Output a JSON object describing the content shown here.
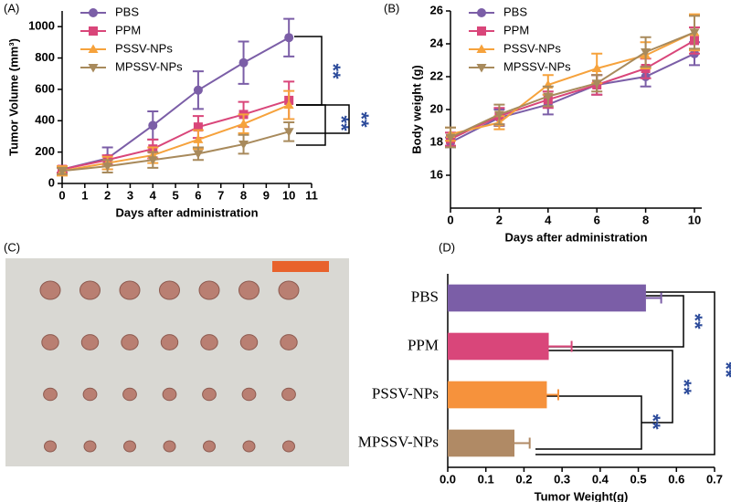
{
  "chart_data": [
    {
      "type": "line",
      "panel": "(A)",
      "xlabel": "Days after administration",
      "ylabel": "Tumor Volume (mm³)",
      "x": [
        0,
        2,
        4,
        6,
        8,
        10
      ],
      "xlim": [
        0,
        11
      ],
      "xticks": [
        0,
        1,
        2,
        3,
        4,
        5,
        6,
        7,
        8,
        9,
        10,
        11
      ],
      "ylim": [
        0,
        1100
      ],
      "yticks": [
        0,
        200,
        400,
        600,
        800,
        1000
      ],
      "legend": "top-left",
      "series": [
        {
          "name": "PBS",
          "color": "#7b5ea7",
          "marker": "circle",
          "values": [
            90,
            160,
            370,
            595,
            770,
            930
          ],
          "errors": [
            20,
            70,
            90,
            120,
            135,
            120
          ]
        },
        {
          "name": "PPM",
          "color": "#d9467a",
          "marker": "square",
          "values": [
            90,
            150,
            220,
            360,
            440,
            530
          ],
          "errors": [
            20,
            30,
            60,
            70,
            80,
            120
          ]
        },
        {
          "name": "PSSV-NPs",
          "color": "#f6a23c",
          "marker": "triangle-up",
          "values": [
            80,
            130,
            180,
            280,
            380,
            500
          ],
          "errors": [
            30,
            40,
            50,
            60,
            60,
            90
          ]
        },
        {
          "name": "MPSSV-NPs",
          "color": "#a88a5c",
          "marker": "triangle-down",
          "values": [
            80,
            110,
            150,
            190,
            250,
            330
          ],
          "errors": [
            20,
            40,
            50,
            40,
            60,
            60
          ]
        }
      ],
      "annotations": [
        "**",
        "**",
        "**"
      ]
    },
    {
      "type": "line",
      "panel": "(B)",
      "xlabel": "Days after administration",
      "ylabel": "Body weight (g)",
      "x": [
        0,
        2,
        4,
        6,
        8,
        10
      ],
      "xlim": [
        0,
        10.3
      ],
      "xticks": [
        0,
        2,
        4,
        6,
        8,
        10
      ],
      "ylim": [
        14,
        26
      ],
      "yticks": [
        16,
        18,
        20,
        22,
        24,
        26
      ],
      "legend": "top-left",
      "series": [
        {
          "name": "PBS",
          "color": "#7b5ea7",
          "marker": "circle",
          "values": [
            18.0,
            19.5,
            20.3,
            21.5,
            22.0,
            23.4
          ],
          "errors": [
            0.3,
            0.5,
            0.6,
            0.6,
            0.6,
            0.7
          ]
        },
        {
          "name": "PPM",
          "color": "#d9467a",
          "marker": "square",
          "values": [
            18.2,
            19.6,
            20.6,
            21.5,
            22.5,
            24.2
          ],
          "errors": [
            0.4,
            0.5,
            0.5,
            0.6,
            0.6,
            0.8
          ]
        },
        {
          "name": "PSSV-NPs",
          "color": "#f6a23c",
          "marker": "triangle-up",
          "values": [
            18.5,
            19.2,
            21.5,
            22.5,
            23.3,
            24.7
          ],
          "errors": [
            0.4,
            0.4,
            0.6,
            0.9,
            0.8,
            1.1
          ]
        },
        {
          "name": "MPSSV-NPs",
          "color": "#a88a5c",
          "marker": "triangle-down",
          "values": [
            18.3,
            19.7,
            20.8,
            21.6,
            23.5,
            24.7
          ],
          "errors": [
            0.6,
            0.6,
            0.6,
            0.5,
            0.9,
            1.0
          ]
        }
      ]
    },
    {
      "type": "barh",
      "panel": "(D)",
      "xlabel": "Tumor Weight(g)",
      "categories": [
        "PBS",
        "PPM",
        "PSSV-NPs",
        "MPSSV-NPs"
      ],
      "values": [
        0.52,
        0.265,
        0.26,
        0.175
      ],
      "errors": [
        0.04,
        0.06,
        0.03,
        0.04
      ],
      "colors": [
        "#7b5ea7",
        "#d9467a",
        "#f6923c",
        "#b08a65"
      ],
      "xlim": [
        0,
        0.7
      ],
      "xticks": [
        {
          "value": 0,
          "label": "0.0"
        },
        0.1,
        0.2,
        0.3,
        0.4,
        0.5,
        0.6,
        0.7
      ],
      "annotations": [
        "**",
        "**",
        "**",
        "**"
      ]
    }
  ],
  "photo": {
    "panel": "(C)"
  }
}
